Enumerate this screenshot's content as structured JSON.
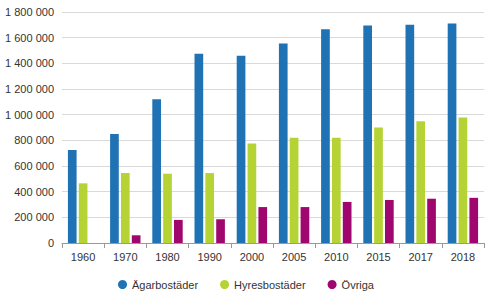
{
  "chart_data": {
    "type": "bar",
    "categories": [
      "1960",
      "1970",
      "1980",
      "1990",
      "2000",
      "2005",
      "2010",
      "2015",
      "2017",
      "2018"
    ],
    "series": [
      {
        "name": "Ägarbostäder",
        "color": "#1f72b4",
        "values": [
          725000,
          850000,
          1120000,
          1475000,
          1460000,
          1555000,
          1665000,
          1695000,
          1700000,
          1710000
        ]
      },
      {
        "name": "Hyresbostäder",
        "color": "#b5d334",
        "values": [
          465000,
          545000,
          540000,
          545000,
          775000,
          820000,
          820000,
          900000,
          948000,
          978000
        ]
      },
      {
        "name": "Övriga",
        "color": "#a0076e",
        "values": [
          null,
          60000,
          180000,
          185000,
          280000,
          280000,
          320000,
          335000,
          345000,
          352000
        ]
      }
    ],
    "ylim": [
      0,
      1800000
    ],
    "yticks": [
      0,
      {
        "value": 200000,
        "label": "200 000"
      },
      {
        "value": 400000,
        "label": "400 000"
      },
      {
        "value": 600000,
        "label": "600 000"
      },
      {
        "value": 800000,
        "label": "800 000"
      },
      {
        "value": 1000000,
        "label": "1 000 000"
      },
      {
        "value": 1200000,
        "label": "1 200 000"
      },
      {
        "value": 1400000,
        "label": "1 400 000"
      },
      {
        "value": 1600000,
        "label": "1 600 000"
      },
      {
        "value": 1800000,
        "label": "1 800 000"
      }
    ],
    "grid": true,
    "legend": "bottom"
  }
}
